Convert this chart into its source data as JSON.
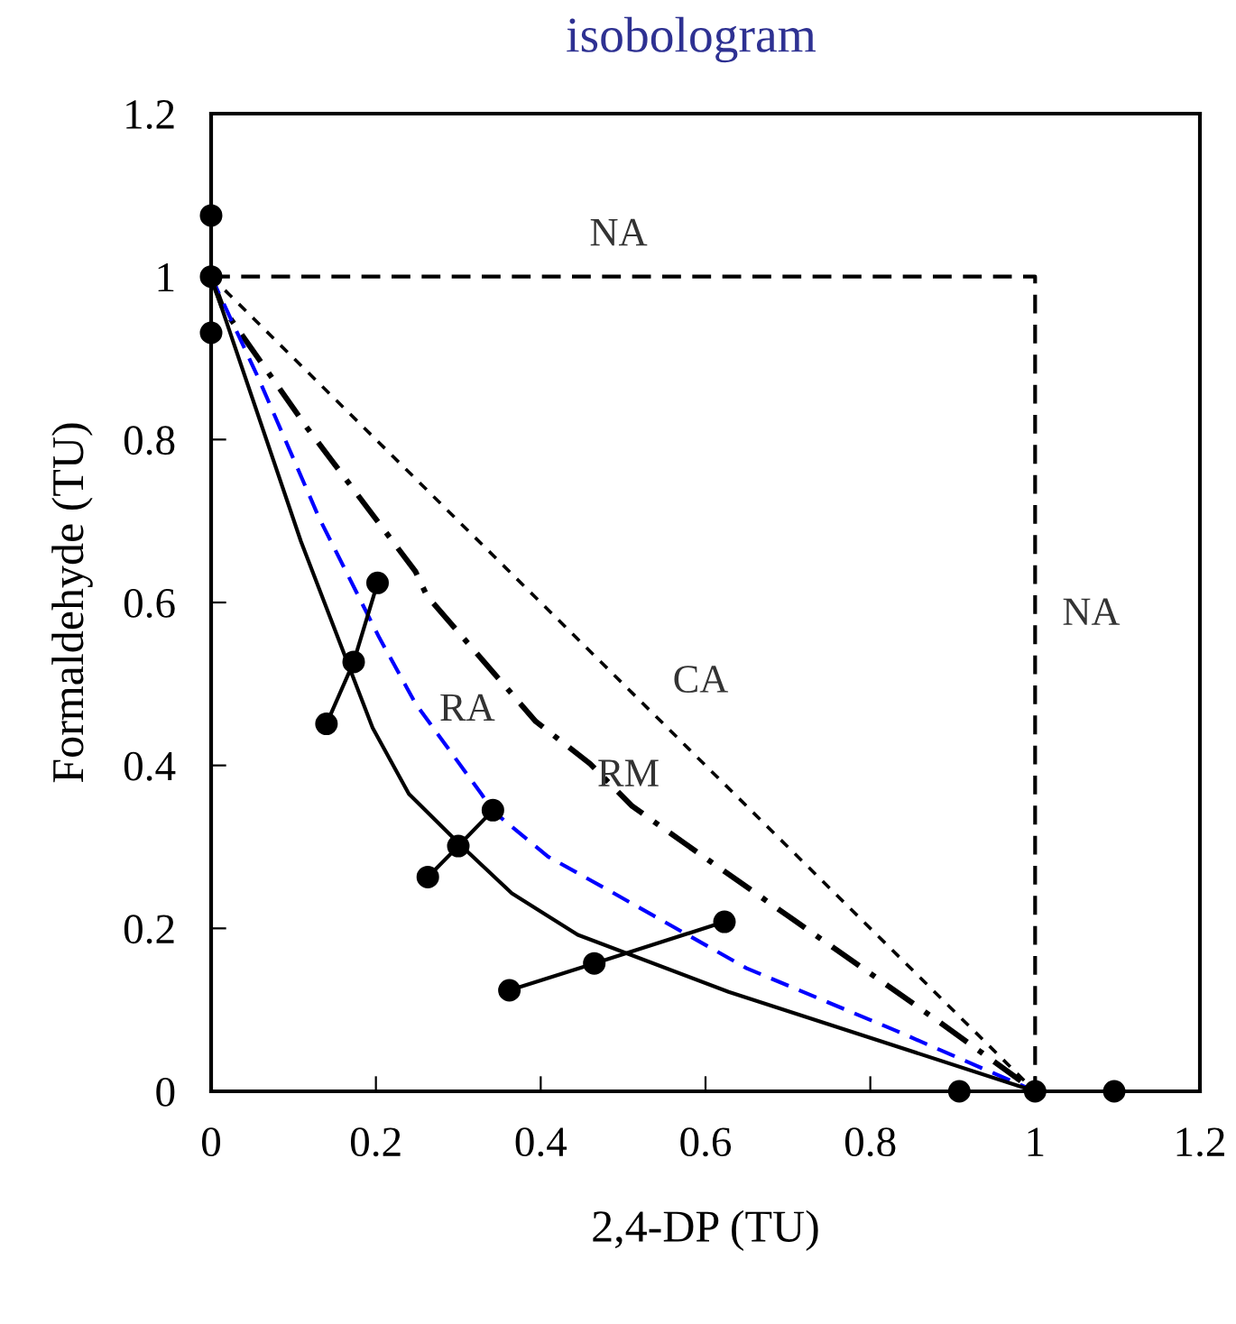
{
  "chart_data": {
    "type": "line",
    "title": "isobologram",
    "xlabel": "2,4-DP (TU)",
    "ylabel": "Formaldehyde (TU)",
    "xlim": [
      0,
      1.2
    ],
    "ylim": [
      0,
      1.2
    ],
    "xticks": [
      0,
      0.2,
      0.4,
      0.6,
      0.8,
      1,
      1.2
    ],
    "yticks": [
      0,
      0.2,
      0.4,
      0.6,
      0.8,
      1,
      1.2
    ],
    "grid": false,
    "legend": false,
    "series": [
      {
        "color": "#000000",
        "line_style": "dashed",
        "marker": "none",
        "x": [
          0,
          1,
          1
        ],
        "values": [
          1,
          1,
          0
        ]
      },
      {
        "color": "#000000",
        "line_style": "dotted",
        "marker": "none",
        "x": [
          0,
          1
        ],
        "values": [
          1,
          0
        ]
      },
      {
        "color": "#000000",
        "line_style": "dashdot",
        "marker": "none",
        "x": [
          0,
          0.014,
          0.116,
          0.248,
          0.262,
          0.394,
          0.46,
          0.511,
          0.613,
          0.76,
          0.884,
          1
        ],
        "values": [
          1,
          0.962,
          0.815,
          0.638,
          0.608,
          0.454,
          0.402,
          0.35,
          0.277,
          0.173,
          0.085,
          0
        ]
      },
      {
        "color": "#0000ff",
        "line_style": "dashed",
        "marker": "none",
        "x": [
          0,
          0.058,
          0.131,
          0.204,
          0.248,
          0.328,
          0.343,
          0.409,
          0.489,
          0.65,
          0.832,
          1
        ],
        "values": [
          1,
          0.874,
          0.704,
          0.557,
          0.476,
          0.365,
          0.343,
          0.288,
          0.243,
          0.151,
          0.074,
          0
        ]
      },
      {
        "color": "#000000",
        "line_style": "solid",
        "marker": "none",
        "x": [
          0,
          0.109,
          0.196,
          0.24,
          0.303,
          0.365,
          0.445,
          0.628,
          1
        ],
        "values": [
          1,
          0.675,
          0.446,
          0.365,
          0.302,
          0.243,
          0.192,
          0.122,
          0
        ]
      },
      {
        "color": "#000000",
        "line_style": "solid",
        "marker": "circle",
        "x": [
          0.14,
          0.173,
          0.202
        ],
        "values": [
          0.451,
          0.527,
          0.624
        ]
      },
      {
        "color": "#000000",
        "line_style": "solid",
        "marker": "circle",
        "x": [
          0.263,
          0.3,
          0.342
        ],
        "values": [
          0.263,
          0.301,
          0.345
        ]
      },
      {
        "color": "#000000",
        "line_style": "solid",
        "marker": "circle",
        "x": [
          0.362,
          0.465,
          0.623
        ],
        "values": [
          0.124,
          0.157,
          0.208
        ]
      },
      {
        "type": "scatter",
        "color": "#000000",
        "marker": "circle",
        "x": [
          0,
          0,
          0,
          0.908,
          1,
          1.096
        ],
        "values": [
          1.075,
          1,
          0.931,
          0,
          0,
          0
        ]
      }
    ],
    "annotations": [
      "NA",
      "NA",
      "CA",
      "RA",
      "RM"
    ]
  }
}
